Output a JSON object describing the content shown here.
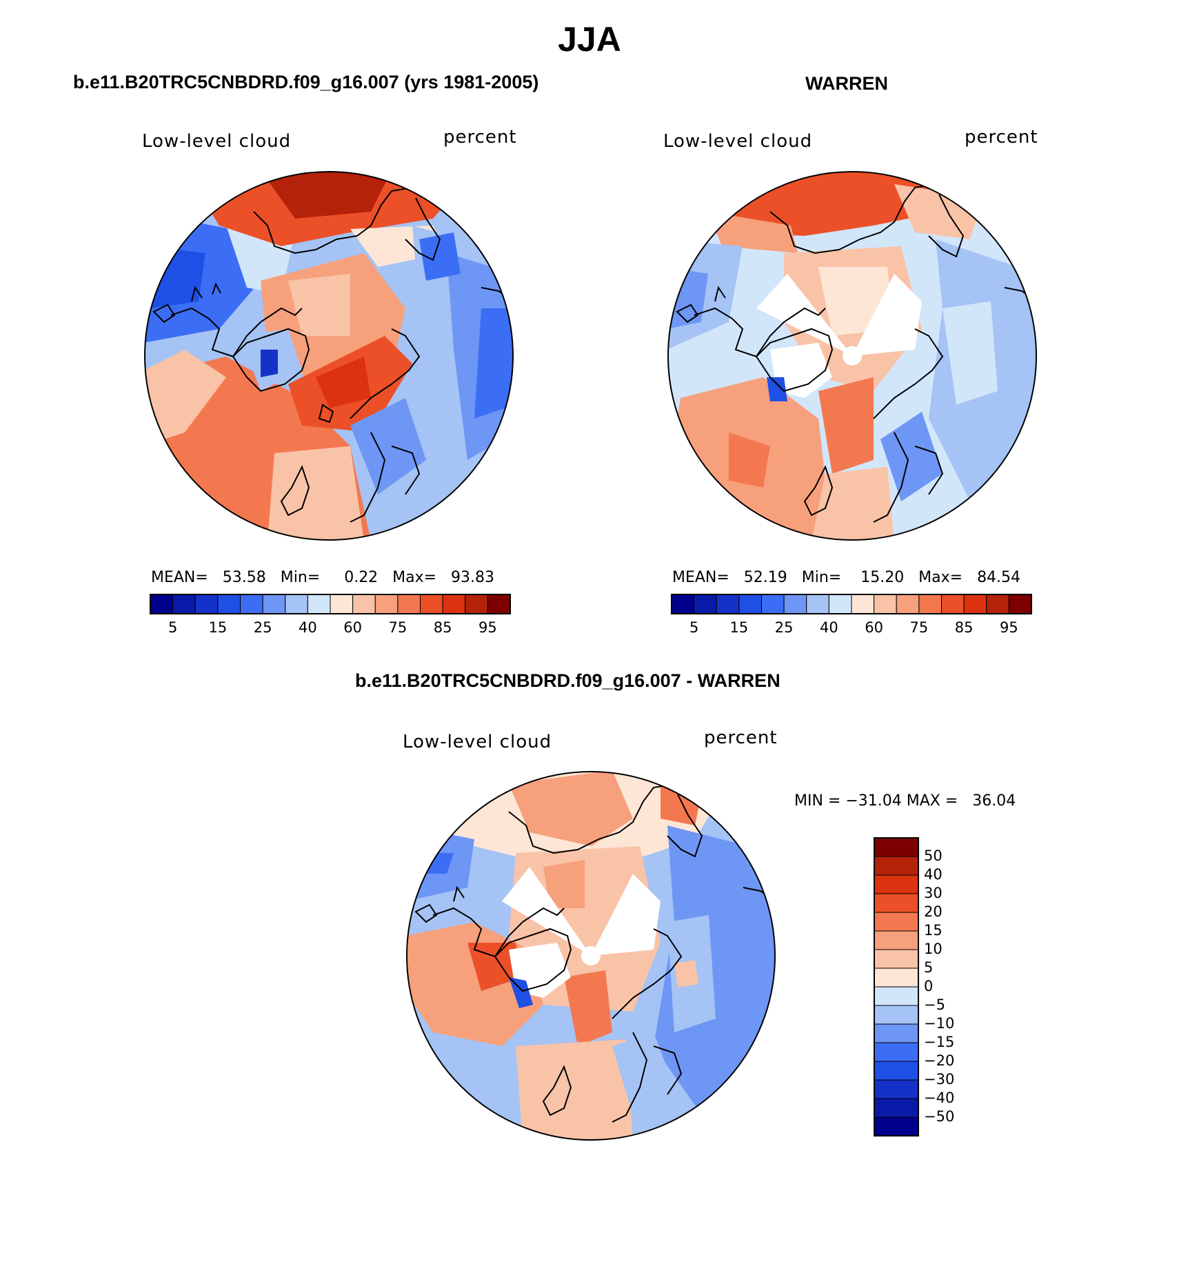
{
  "figure": {
    "title": "JJA",
    "variable": "Low-level cloud",
    "units": "percent"
  },
  "panels": [
    {
      "heading": "b.e11.B20TRC5CNBDRD.f09_g16.007 (yrs 1981-2005)",
      "variable": "Low-level cloud",
      "units": "percent",
      "stats": "MEAN=   53.58   Min=     0.22   Max=   93.83"
    },
    {
      "heading": "WARREN",
      "variable": "Low-level cloud",
      "units": "percent",
      "stats": "MEAN=   52.19   Min=    15.20   Max=   84.54"
    },
    {
      "heading": "b.e11.B20TRC5CNBDRD.f09_g16.007 - WARREN",
      "variable": "Low-level cloud",
      "units": "percent",
      "stats": "MIN = −31.04 MAX =   36.04"
    }
  ],
  "chart_data": [
    {
      "type": "heatmap",
      "title": "Low-level cloud",
      "units": "percent",
      "projection": "north polar stereographic",
      "mean": 53.58,
      "min": 0.22,
      "max": 93.83,
      "levels": [
        5,
        10,
        15,
        20,
        25,
        30,
        40,
        50,
        60,
        70,
        75,
        80,
        85,
        90,
        95
      ],
      "colorbar_labels": [
        "5",
        "15",
        "25",
        "40",
        "60",
        "75",
        "85",
        "95"
      ]
    },
    {
      "type": "heatmap",
      "title": "Low-level cloud",
      "units": "percent",
      "projection": "north polar stereographic",
      "mean": 52.19,
      "min": 15.2,
      "max": 84.54,
      "levels": [
        5,
        10,
        15,
        20,
        25,
        30,
        40,
        50,
        60,
        70,
        75,
        80,
        85,
        90,
        95
      ],
      "colorbar_labels": [
        "5",
        "15",
        "25",
        "40",
        "60",
        "75",
        "85",
        "95"
      ]
    },
    {
      "type": "heatmap",
      "title": "Low-level cloud",
      "units": "percent",
      "projection": "north polar stereographic",
      "min": -31.04,
      "max": 36.04,
      "levels": [
        -50,
        -40,
        -30,
        -20,
        -15,
        -10,
        -5,
        0,
        5,
        10,
        15,
        20,
        30,
        40,
        50
      ],
      "colorbar_labels": [
        "50",
        "40",
        "30",
        "20",
        "15",
        "10",
        "5",
        "0",
        "−5",
        "−10",
        "−15",
        "−20",
        "−30",
        "−40",
        "−50"
      ]
    }
  ],
  "palette": [
    "#00008c",
    "#0a1aa8",
    "#1432c8",
    "#1e50e6",
    "#3c6ef5",
    "#6e96f5",
    "#a5c3f5",
    "#d2e6fa",
    "#fde6d6",
    "#f9c3a8",
    "#f7a07c",
    "#f4784f",
    "#ec5028",
    "#dc3210",
    "#b4220a",
    "#7d0000"
  ],
  "colors": {
    "coast": "#000000",
    "outline": "#000000",
    "missing": "#ffffff"
  }
}
